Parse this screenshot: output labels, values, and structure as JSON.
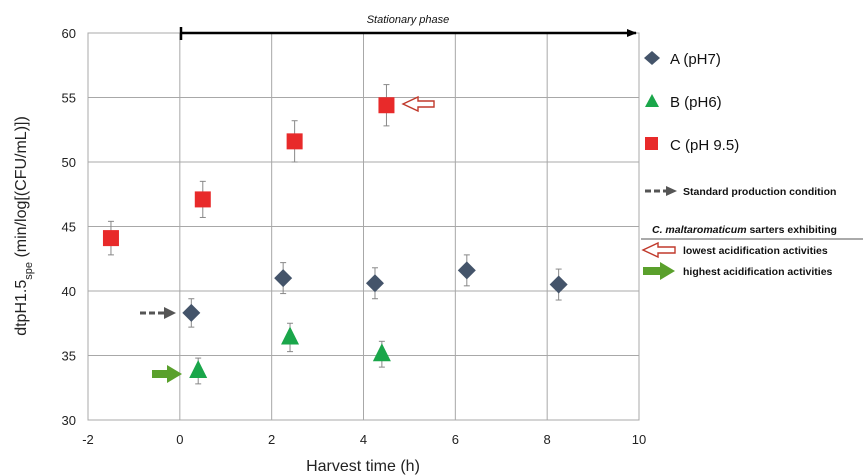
{
  "chart_data": {
    "type": "scatter",
    "xlabel": "Harvest time (h)",
    "ylabel_main": "dtpH1.5",
    "ylabel_sub": "spe",
    "ylabel_rest": " (min/log[(CFU/mL)])",
    "xlim": [
      -2,
      10
    ],
    "ylim": [
      30,
      60
    ],
    "x_ticks": [
      "-2",
      "0",
      "2",
      "4",
      "6",
      "8",
      "10"
    ],
    "y_ticks": [
      "30",
      "35",
      "40",
      "45",
      "50",
      "55",
      "60"
    ],
    "grid": true,
    "legend_position": "right",
    "phase_annotation": {
      "label": "Stationary phase",
      "x_start": 0,
      "x_end": 10
    },
    "series": [
      {
        "name": "A (pH7)",
        "marker": "diamond",
        "color": "#44546a",
        "points": [
          {
            "x": 0.25,
            "y": 38.3,
            "err": 1.1
          },
          {
            "x": 2.25,
            "y": 41.0,
            "err": 1.2
          },
          {
            "x": 4.25,
            "y": 40.6,
            "err": 1.2
          },
          {
            "x": 6.25,
            "y": 41.6,
            "err": 1.2
          },
          {
            "x": 8.25,
            "y": 40.5,
            "err": 1.2
          }
        ]
      },
      {
        "name": "B (pH6)",
        "marker": "triangle",
        "color": "#1aa64a",
        "points": [
          {
            "x": 0.4,
            "y": 33.8,
            "err": 1.0
          },
          {
            "x": 2.4,
            "y": 36.4,
            "err": 1.1
          },
          {
            "x": 4.4,
            "y": 35.1,
            "err": 1.0
          }
        ]
      },
      {
        "name": "C (pH 9.5)",
        "marker": "square",
        "color": "#e82a2a",
        "points": [
          {
            "x": -1.5,
            "y": 44.1,
            "err": 1.3
          },
          {
            "x": 0.5,
            "y": 47.1,
            "err": 1.4
          },
          {
            "x": 2.5,
            "y": 51.6,
            "err": 1.6
          },
          {
            "x": 4.5,
            "y": 54.4,
            "err": 1.6
          }
        ]
      }
    ],
    "markers_on_chart": [
      {
        "kind": "dashed-arrow",
        "color": "#555555",
        "x": 0.25,
        "y": 38.3
      },
      {
        "kind": "solid-arrow",
        "color": "#5aa02c",
        "x": 0.4,
        "y": 33.6
      },
      {
        "kind": "outline-arrow",
        "color": "#c0392b",
        "x": 4.5,
        "y": 54.4
      }
    ],
    "notes": {
      "standard": "Standard production condition",
      "heading_italic": "C. maltaromaticum",
      "heading_rest": " sarters exhibiting",
      "lowest": "lowest acidification activities",
      "highest": "highest acidification activities"
    }
  }
}
